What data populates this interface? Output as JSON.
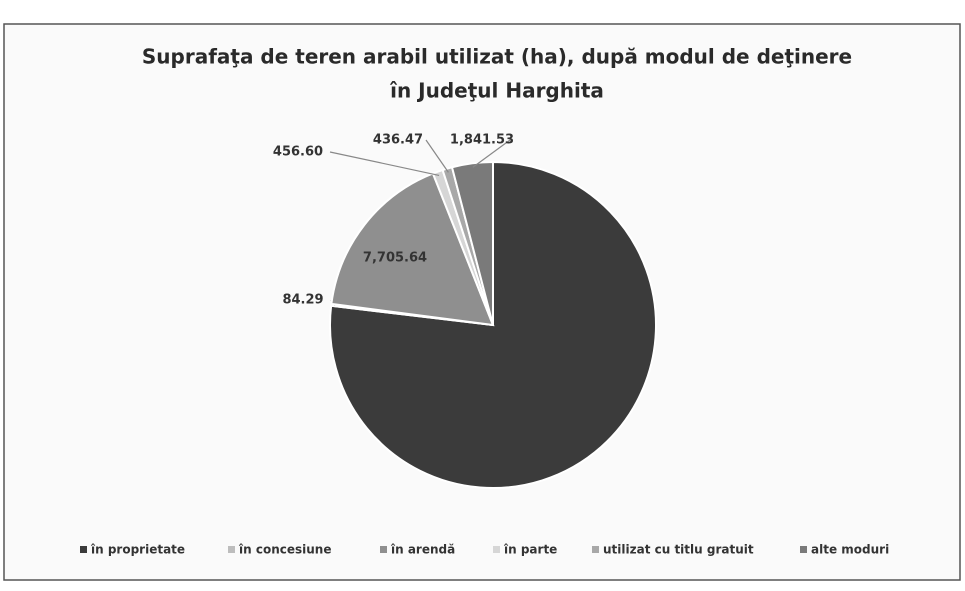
{
  "chart_data": {
    "type": "pie",
    "title": [
      "Suprafaţa de teren arabil utilizat (ha), după modul de deţinere",
      "în Judeţul Harghita"
    ],
    "categories": [
      "în proprietate",
      "în concesiune",
      "în arendă",
      "în parte",
      "utilizat cu titlu gratuit",
      "alte moduri"
    ],
    "values": [
      35000,
      84.29,
      7705.64,
      456.6,
      436.47,
      1841.53
    ],
    "value_labels": [
      null,
      "84.29",
      "7,705.64",
      "456.60",
      "436.47",
      "1,841.53"
    ],
    "colors": [
      "#3b3b3b",
      "#bdbdbd",
      "#8f8f8f",
      "#d6d6d6",
      "#a8a8a8",
      "#7a7a7a"
    ],
    "legend": "bottom"
  }
}
